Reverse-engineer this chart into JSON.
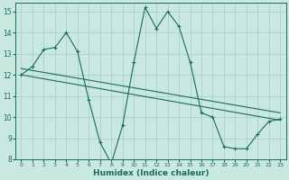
{
  "xlabel": "Humidex (Indice chaleur)",
  "background_color": "#c8e8e0",
  "grid_color": "#a8ccc8",
  "line_color": "#1a6b60",
  "xlim": [
    -0.5,
    23.5
  ],
  "ylim": [
    8,
    15.4
  ],
  "yticks": [
    8,
    9,
    10,
    11,
    12,
    13,
    14,
    15
  ],
  "xticks": [
    0,
    1,
    2,
    3,
    4,
    5,
    6,
    7,
    8,
    9,
    10,
    11,
    12,
    13,
    14,
    15,
    16,
    17,
    18,
    19,
    20,
    21,
    22,
    23
  ],
  "series1_x": [
    0,
    1,
    2,
    3,
    4,
    5,
    6,
    7,
    8,
    9,
    10,
    11,
    12,
    13,
    14,
    15,
    16,
    17,
    18,
    19,
    20,
    21,
    22,
    23
  ],
  "series1_y": [
    12.0,
    12.4,
    13.2,
    13.3,
    14.0,
    13.1,
    10.8,
    8.8,
    7.8,
    9.6,
    12.6,
    15.2,
    14.2,
    15.0,
    14.3,
    12.6,
    10.2,
    10.0,
    8.6,
    8.5,
    8.5,
    9.2,
    9.8,
    9.9
  ],
  "series2_x": [
    0,
    23
  ],
  "series2_y": [
    12.3,
    10.2
  ],
  "series3_x": [
    0,
    23
  ],
  "series3_y": [
    12.0,
    9.85
  ]
}
